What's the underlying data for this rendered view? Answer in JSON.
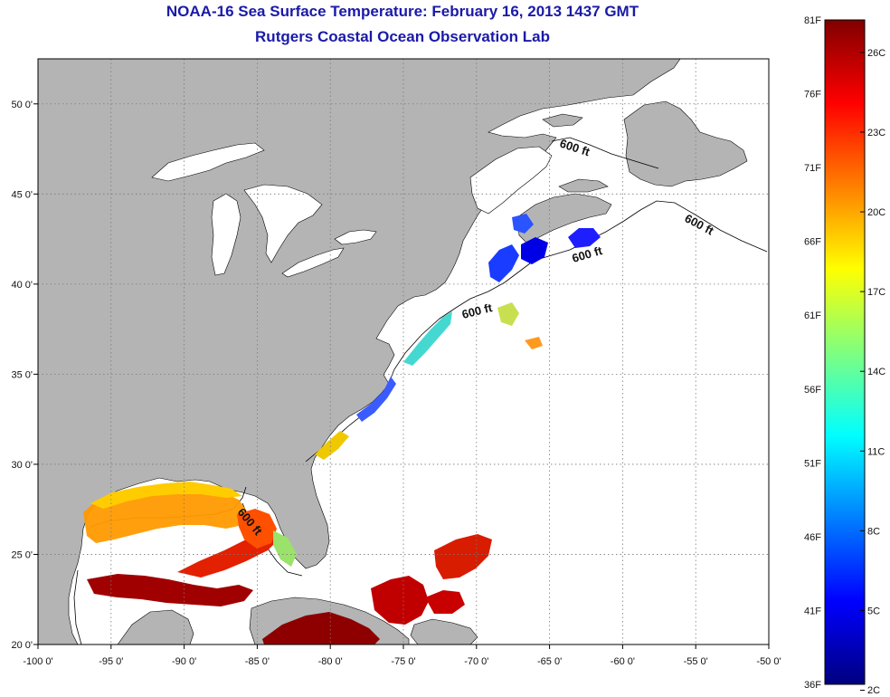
{
  "header": {
    "title": "NOAA-16 Sea Surface Temperature:  February 16, 2013 1437 GMT",
    "subtitle": "Rutgers Coastal Ocean Observation Lab"
  },
  "map": {
    "lon_ticks": [
      "-100 0'",
      "-95 0'",
      "-90 0'",
      "-85 0'",
      "-80 0'",
      "-75 0'",
      "-70 0'",
      "-65 0'",
      "-60 0'",
      "-55 0'",
      "-50 0'"
    ],
    "lat_ticks": [
      "50 0'",
      "45 0'",
      "40 0'",
      "35 0'",
      "30 0'",
      "25 0'",
      "20 0'"
    ],
    "lon_range": [
      -100,
      -50
    ],
    "lat_range": [
      20,
      52.5
    ],
    "grid": "dotted",
    "contour_labels": [
      "600 ft",
      "600 ft",
      "600 ft",
      "600 ft",
      "600 ft"
    ],
    "colors": {
      "land": "#b4b4b4",
      "ocean": "#ffffff",
      "lakes": "#ffffff"
    }
  },
  "colorbar": {
    "f_labels": [
      "81F",
      "76F",
      "71F",
      "66F",
      "61F",
      "56F",
      "51F",
      "46F",
      "41F",
      "36F"
    ],
    "c_labels": [
      "26C",
      "23C",
      "20C",
      "17C",
      "14C",
      "11C",
      "8C",
      "5C",
      "2C"
    ],
    "gradient": [
      "#00007f",
      "#0000ff",
      "#007fff",
      "#00ffff",
      "#7fff7f",
      "#ffff00",
      "#ff7f00",
      "#ff0000",
      "#7f0000"
    ]
  }
}
